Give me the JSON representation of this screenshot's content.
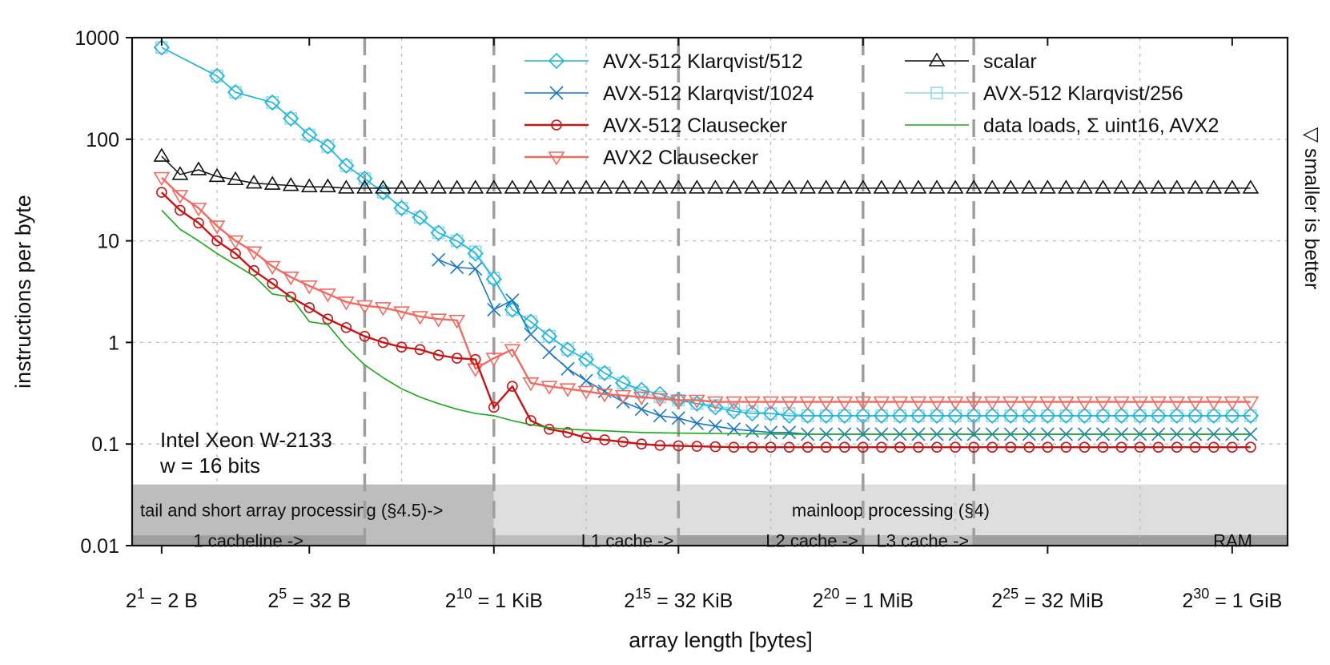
{
  "chart_data": {
    "type": "line",
    "yscale": "log",
    "ylim": [
      0.01,
      1000
    ],
    "xlim": [
      0.2,
      31.5
    ],
    "ylabel": "instructions per byte",
    "xlabel": "array length [bytes]",
    "yticks": [
      "1000",
      "100",
      "10",
      "1",
      "0.1",
      "0.01"
    ],
    "xticks": [
      {
        "exp": 1,
        "base": "2",
        "sup": "1",
        "rest": " = 2 B"
      },
      {
        "exp": 5,
        "base": "2",
        "sup": "5",
        "rest": " = 32 B"
      },
      {
        "exp": 10,
        "base": "2",
        "sup": "10",
        "rest": " = 1 KiB"
      },
      {
        "exp": 15,
        "base": "2",
        "sup": "15",
        "rest": " = 32 KiB"
      },
      {
        "exp": 20,
        "base": "2",
        "sup": "20",
        "rest": " = 1 MiB"
      },
      {
        "exp": 25,
        "base": "2",
        "sup": "25",
        "rest": " = 32 MiB"
      },
      {
        "exp": 30,
        "base": "2",
        "sup": "30",
        "rest": " = 1 GiB"
      }
    ],
    "side_note": "▽ smaller is better",
    "annotation": [
      "Intel Xeon W-2133",
      "w = 16 bits"
    ],
    "dashed_boundaries": [
      6.5,
      10,
      15,
      20,
      23
    ],
    "bands": [
      {
        "label": "tail and short array processing (§4.5)->",
        "from": 0.2,
        "to": 10,
        "row": 0,
        "shade": "#bdbdbd"
      },
      {
        "label": "mainloop processing (§4)",
        "from": 10,
        "to": 31.5,
        "row": 0,
        "shade": "#dedede"
      },
      {
        "label": "1 cacheline ->",
        "from": 0.2,
        "to": 6.5,
        "row": 1,
        "shade": "#9e9e9e"
      },
      {
        "label": "L1 cache ->",
        "from": 6.5,
        "to": 15,
        "row": 1,
        "shade": "#bdbdbd"
      },
      {
        "label": "L2 cache ->",
        "from": 15,
        "to": 20,
        "row": 1,
        "shade": "#9e9e9e"
      },
      {
        "label": "L3 cache ->",
        "from": 20,
        "to": 23,
        "row": 1,
        "shade": "#bdbdbd"
      },
      {
        "label": "RAM",
        "from": 23,
        "to": 31.5,
        "row": 1,
        "shade": "#9e9e9e"
      }
    ],
    "series": [
      {
        "name": "AVX-512 Klarqvist/256",
        "color": "#8fd8ee",
        "marker": "square",
        "width": 1.6,
        "x": [
          1,
          2.5,
          3,
          4,
          4.5,
          5,
          5.5,
          6,
          6.5,
          7,
          7.5,
          8,
          8.5,
          9,
          9.5,
          10,
          10.5,
          11,
          11.5,
          12,
          12.5,
          13,
          13.5,
          14,
          14.5,
          15,
          15.5,
          16,
          16.5,
          17,
          17.5,
          18,
          18.5,
          19,
          19.5,
          20,
          20.5,
          21,
          21.5,
          22,
          22.5,
          23,
          23.5,
          24,
          24.5,
          25,
          25.5,
          26,
          26.5,
          27,
          27.5,
          28,
          28.5,
          29,
          29.5,
          30,
          30.5
        ],
        "y": [
          800,
          420,
          290,
          230,
          160,
          110,
          85,
          55,
          41,
          30,
          21,
          17,
          12,
          10,
          7.8,
          4.3,
          2.1,
          1.6,
          1.15,
          0.85,
          0.68,
          0.5,
          0.4,
          0.32,
          0.29,
          0.27,
          0.25,
          0.24,
          0.22,
          0.21,
          0.2,
          0.2,
          0.19,
          0.19,
          0.19,
          0.19,
          0.19,
          0.19,
          0.19,
          0.19,
          0.19,
          0.19,
          0.19,
          0.19,
          0.19,
          0.19,
          0.19,
          0.19,
          0.19,
          0.19,
          0.19,
          0.19,
          0.19,
          0.19,
          0.19,
          0.19,
          0.19
        ]
      },
      {
        "name": "AVX-512 Klarqvist/512",
        "color": "#1fb6d9",
        "marker": "diamond",
        "width": 1.6,
        "x": [
          1,
          2.5,
          3,
          4,
          4.5,
          5,
          5.5,
          6,
          6.5,
          7,
          7.5,
          8,
          8.5,
          9,
          9.5,
          10,
          10.5,
          11,
          11.5,
          12,
          12.5,
          13,
          13.5,
          14,
          14.5,
          15,
          15.5,
          16,
          16.5,
          17,
          17.5,
          18,
          18.5,
          19,
          19.5,
          20,
          20.5,
          21,
          21.5,
          22,
          22.5,
          23,
          23.5,
          24,
          24.5,
          25,
          25.5,
          26,
          26.5,
          27,
          27.5,
          28,
          28.5,
          29,
          29.5,
          30,
          30.5
        ],
        "y": [
          800,
          420,
          290,
          230,
          160,
          110,
          85,
          55,
          41,
          30,
          21,
          17,
          12,
          10,
          7.5,
          4.2,
          2.1,
          1.6,
          1.15,
          0.85,
          0.68,
          0.5,
          0.4,
          0.34,
          0.31,
          0.27,
          0.25,
          0.23,
          0.21,
          0.2,
          0.2,
          0.19,
          0.19,
          0.19,
          0.19,
          0.19,
          0.19,
          0.19,
          0.19,
          0.19,
          0.19,
          0.19,
          0.19,
          0.19,
          0.19,
          0.19,
          0.19,
          0.19,
          0.19,
          0.19,
          0.19,
          0.19,
          0.19,
          0.19,
          0.19,
          0.19,
          0.19
        ]
      },
      {
        "name": "AVX-512 Klarqvist/1024",
        "color": "#1a78c2",
        "marker": "cross",
        "width": 1.6,
        "x": [
          8.5,
          9,
          9.5,
          10,
          10.5,
          11,
          11.5,
          12,
          12.5,
          13,
          13.5,
          14,
          14.5,
          15,
          15.5,
          16,
          16.5,
          17,
          17.5,
          18,
          18.5,
          19,
          19.5,
          20,
          20.5,
          21,
          21.5,
          22,
          22.5,
          23,
          23.5,
          24,
          24.5,
          25,
          25.5,
          26,
          26.5,
          27,
          27.5,
          28,
          28.5,
          29,
          29.5,
          30,
          30.5
        ],
        "y": [
          6.5,
          5.5,
          5.3,
          2.1,
          2.6,
          1.2,
          0.8,
          0.55,
          0.42,
          0.33,
          0.26,
          0.22,
          0.19,
          0.18,
          0.16,
          0.15,
          0.14,
          0.135,
          0.13,
          0.13,
          0.125,
          0.125,
          0.125,
          0.125,
          0.125,
          0.125,
          0.125,
          0.125,
          0.125,
          0.125,
          0.125,
          0.125,
          0.125,
          0.125,
          0.125,
          0.125,
          0.125,
          0.125,
          0.125,
          0.125,
          0.125,
          0.125,
          0.125,
          0.125,
          0.125
        ]
      },
      {
        "name": "scalar",
        "color": "#111111",
        "marker": "triangle-up",
        "width": 1.5,
        "x": [
          1,
          1.5,
          2,
          2.5,
          3,
          3.5,
          4,
          4.5,
          5,
          5.5,
          6,
          6.5,
          7,
          7.5,
          8,
          8.5,
          9,
          9.5,
          10,
          10.5,
          11,
          11.5,
          12,
          12.5,
          13,
          13.5,
          14,
          14.5,
          15,
          15.5,
          16,
          16.5,
          17,
          17.5,
          18,
          18.5,
          19,
          19.5,
          20,
          20.5,
          21,
          21.5,
          22,
          22.5,
          23,
          23.5,
          24,
          24.5,
          25,
          25.5,
          26,
          26.5,
          27,
          27.5,
          28,
          28.5,
          29,
          29.5,
          30,
          30.5
        ],
        "y": [
          68,
          45,
          50,
          43,
          40,
          37,
          36,
          35,
          34,
          34,
          33,
          33,
          33,
          33,
          33,
          33,
          33,
          33,
          33,
          33,
          33,
          33,
          33,
          33,
          33,
          33,
          33,
          33,
          33,
          33,
          33,
          33,
          33,
          33,
          33,
          33,
          33,
          33,
          33,
          33,
          33,
          33,
          33,
          33,
          33,
          33,
          33,
          33,
          33,
          33,
          33,
          33,
          33,
          33,
          33,
          33,
          33,
          33,
          33,
          33
        ]
      },
      {
        "name": "AVX2 Clausecker",
        "color": "#f26a5f",
        "marker": "triangle-down",
        "width": 2.4,
        "x": [
          1,
          1.5,
          2,
          2.5,
          3,
          3.5,
          4,
          4.5,
          5,
          5.5,
          6,
          6.5,
          7,
          7.5,
          8,
          8.5,
          9,
          9.5,
          10,
          10.5,
          11,
          11.5,
          12,
          12.5,
          13,
          13.5,
          14,
          14.5,
          15,
          15.5,
          16,
          16.5,
          17,
          17.5,
          18,
          18.5,
          19,
          19.5,
          20,
          20.5,
          21,
          21.5,
          22,
          22.5,
          23,
          23.5,
          24,
          24.5,
          25,
          25.5,
          26,
          26.5,
          27,
          27.5,
          28,
          28.5,
          29,
          29.5,
          30,
          30.5
        ],
        "y": [
          42,
          28,
          21,
          14,
          10,
          7.8,
          5.6,
          4.4,
          3.6,
          3.0,
          2.5,
          2.3,
          2.2,
          2.0,
          1.8,
          1.7,
          1.65,
          0.55,
          0.7,
          0.85,
          0.4,
          0.37,
          0.35,
          0.33,
          0.31,
          0.3,
          0.29,
          0.28,
          0.27,
          0.27,
          0.26,
          0.26,
          0.26,
          0.26,
          0.26,
          0.26,
          0.26,
          0.26,
          0.26,
          0.26,
          0.26,
          0.26,
          0.26,
          0.26,
          0.26,
          0.26,
          0.26,
          0.26,
          0.26,
          0.26,
          0.26,
          0.26,
          0.26,
          0.26,
          0.26,
          0.26,
          0.26,
          0.26,
          0.26,
          0.26
        ]
      },
      {
        "name": "AVX-512 Clausecker",
        "color": "#c81414",
        "marker": "circle",
        "width": 2.4,
        "x": [
          1,
          1.5,
          2,
          2.5,
          3,
          3.5,
          4,
          4.5,
          5,
          5.5,
          6,
          6.5,
          7,
          7.5,
          8,
          8.5,
          9,
          9.5,
          10,
          10.5,
          11,
          11.5,
          12,
          12.5,
          13,
          13.5,
          14,
          14.5,
          15,
          15.5,
          16,
          16.5,
          17,
          17.5,
          18,
          18.5,
          19,
          19.5,
          20,
          20.5,
          21,
          21.5,
          22,
          22.5,
          23,
          23.5,
          24,
          24.5,
          25,
          25.5,
          26,
          26.5,
          27,
          27.5,
          28,
          28.5,
          29,
          29.5,
          30,
          30.5
        ],
        "y": [
          30,
          20,
          15,
          10,
          7.5,
          5.1,
          3.8,
          2.8,
          2.2,
          1.7,
          1.4,
          1.15,
          1.0,
          0.9,
          0.85,
          0.75,
          0.7,
          0.68,
          0.23,
          0.37,
          0.17,
          0.14,
          0.13,
          0.115,
          0.11,
          0.105,
          0.1,
          0.097,
          0.096,
          0.095,
          0.094,
          0.093,
          0.093,
          0.093,
          0.093,
          0.093,
          0.093,
          0.093,
          0.093,
          0.093,
          0.093,
          0.093,
          0.093,
          0.093,
          0.093,
          0.093,
          0.093,
          0.093,
          0.093,
          0.093,
          0.093,
          0.093,
          0.093,
          0.093,
          0.093,
          0.093,
          0.093,
          0.093,
          0.093,
          0.093
        ]
      },
      {
        "name": "data loads, Σ uint16, AVX2",
        "color": "#1aa81a",
        "marker": "none",
        "width": 1.6,
        "x": [
          1,
          1.5,
          2,
          2.5,
          3,
          3.5,
          4,
          4.5,
          5,
          5.5,
          6,
          6.5,
          7,
          7.5,
          8,
          8.5,
          9,
          9.5,
          10,
          10.5,
          11,
          11.5,
          12,
          13,
          14,
          15,
          16,
          17,
          18,
          19,
          20,
          21,
          22,
          23,
          24,
          25,
          26,
          27,
          28,
          29,
          30,
          30.5
        ],
        "y": [
          20,
          13,
          10,
          7.5,
          5.8,
          4.5,
          3.0,
          2.8,
          1.6,
          1.5,
          0.9,
          0.6,
          0.45,
          0.35,
          0.29,
          0.25,
          0.22,
          0.2,
          0.19,
          0.17,
          0.155,
          0.145,
          0.14,
          0.135,
          0.13,
          0.128,
          0.127,
          0.126,
          0.125,
          0.125,
          0.125,
          0.125,
          0.125,
          0.125,
          0.125,
          0.125,
          0.125,
          0.125,
          0.125,
          0.125,
          0.125,
          0.125
        ]
      }
    ],
    "legend_order": [
      "AVX-512 Klarqvist/512",
      "AVX-512 Klarqvist/1024",
      "AVX-512 Clausecker",
      "AVX2 Clausecker",
      "scalar",
      "AVX-512 Klarqvist/256",
      "data loads, Σ uint16, AVX2"
    ],
    "legend_position": "top-center"
  }
}
